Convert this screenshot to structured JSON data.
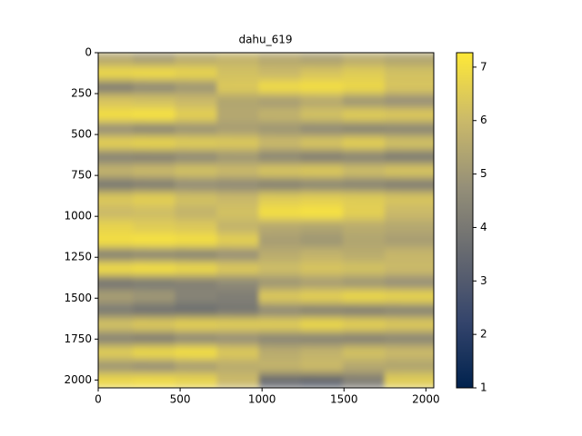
{
  "chart_data": {
    "type": "heatmap",
    "title": "dahu_619",
    "colormap": "cividis",
    "xlim": [
      0,
      2048
    ],
    "ylim": [
      2048,
      0
    ],
    "xticks": [
      0,
      500,
      1000,
      1500,
      2000
    ],
    "yticks": [
      0,
      250,
      500,
      750,
      1000,
      1250,
      1500,
      1750,
      2000
    ],
    "clim": [
      1,
      7.27
    ],
    "cticks": [
      1,
      2,
      3,
      4,
      5,
      6,
      7
    ],
    "z": [
      [
        5.5,
        5.2,
        5.6,
        5.8,
        5.5,
        5.3,
        5.6,
        5.4
      ],
      [
        6.8,
        6.9,
        6.7,
        6.2,
        6.0,
        6.3,
        6.5,
        6.2
      ],
      [
        4.2,
        4.6,
        5.0,
        6.4,
        6.9,
        7.0,
        6.8,
        6.3
      ],
      [
        6.3,
        6.2,
        6.0,
        5.4,
        5.2,
        5.5,
        5.0,
        4.8
      ],
      [
        7.0,
        7.1,
        6.6,
        5.5,
        5.8,
        6.2,
        6.5,
        6.4
      ],
      [
        4.8,
        4.5,
        4.9,
        5.2,
        5.0,
        4.6,
        4.4,
        4.5
      ],
      [
        6.6,
        6.7,
        6.5,
        6.4,
        6.0,
        6.3,
        6.6,
        6.2
      ],
      [
        4.4,
        4.3,
        4.6,
        5.0,
        4.5,
        4.2,
        4.4,
        4.1
      ],
      [
        5.8,
        6.0,
        6.2,
        6.0,
        6.3,
        6.4,
        6.1,
        6.3
      ],
      [
        4.0,
        4.2,
        4.7,
        4.6,
        4.3,
        4.5,
        4.4,
        4.2
      ],
      [
        6.4,
        6.6,
        6.2,
        6.0,
        6.5,
        6.6,
        6.5,
        6.3
      ],
      [
        6.0,
        6.1,
        5.8,
        6.2,
        7.0,
        7.1,
        6.6,
        6.0
      ],
      [
        6.7,
        6.5,
        6.4,
        5.8,
        5.5,
        5.4,
        5.6,
        5.5
      ],
      [
        7.0,
        7.1,
        7.0,
        6.6,
        5.2,
        5.0,
        5.4,
        5.2
      ],
      [
        4.3,
        4.5,
        4.4,
        4.8,
        5.6,
        5.8,
        5.6,
        5.9
      ],
      [
        6.9,
        7.0,
        6.8,
        6.4,
        6.1,
        6.3,
        6.2,
        6.0
      ],
      [
        3.9,
        4.1,
        4.3,
        4.6,
        5.0,
        5.2,
        5.0,
        4.8
      ],
      [
        5.2,
        5.0,
        4.4,
        4.2,
        6.4,
        6.6,
        6.8,
        6.7
      ],
      [
        4.1,
        3.8,
        3.7,
        4.0,
        4.6,
        4.3,
        4.2,
        4.4
      ],
      [
        6.2,
        6.4,
        6.6,
        6.5,
        6.5,
        6.8,
        6.6,
        6.4
      ],
      [
        4.4,
        4.2,
        4.6,
        4.8,
        4.5,
        4.4,
        4.3,
        4.5
      ],
      [
        6.5,
        6.8,
        7.0,
        6.4,
        5.6,
        5.8,
        6.2,
        6.0
      ],
      [
        5.0,
        4.8,
        5.2,
        5.6,
        5.8,
        6.0,
        5.5,
        5.4
      ],
      [
        6.8,
        6.9,
        6.7,
        6.0,
        3.6,
        3.4,
        4.2,
        6.5
      ]
    ]
  }
}
